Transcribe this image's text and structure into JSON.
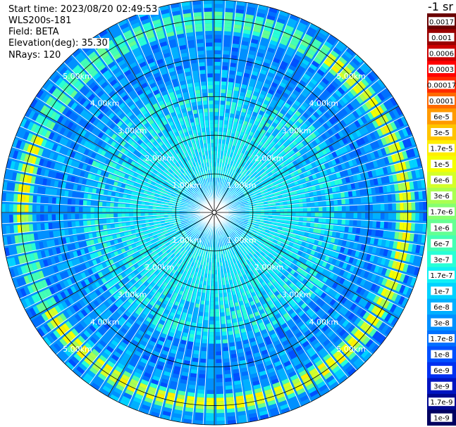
{
  "info": {
    "start_time": "Start time: 2023/08/20 02:49:53",
    "instrument": "WLS200s-181",
    "field": "Field: BETA",
    "elevation": "Elevation(deg): 35.30",
    "nrays": "NRays: 120"
  },
  "chart_data": {
    "type": "polar-ppi",
    "field": "BETA",
    "rays": 120,
    "range_rings_km": [
      1.0,
      2.0,
      3.0,
      4.0,
      5.0
    ],
    "ring_labels": [
      "1.00km",
      "2.00km",
      "3.00km",
      "4.00km",
      "5.00km"
    ],
    "max_range_km": 5.5,
    "spoke_angles_deg": [
      0,
      30,
      60,
      90,
      120,
      150,
      180,
      210,
      240,
      270,
      300,
      330
    ],
    "bright_ring": {
      "range_km": 4.95,
      "azimuth_from_deg": -55,
      "azimuth_to_deg": 150,
      "extra_arc": [
        175,
        205
      ]
    },
    "colorbar": {
      "unit_label": "-1 sr",
      "entries": [
        {
          "label": "0.0017",
          "color": "#6a0000"
        },
        {
          "label": "0.001",
          "color": "#9a0000"
        },
        {
          "label": "0.0006",
          "color": "#cc0000"
        },
        {
          "label": "0.0003",
          "color": "#ff0000"
        },
        {
          "label": "0.00017",
          "color": "#ff2a00"
        },
        {
          "label": "0.0001",
          "color": "#ff6a00"
        },
        {
          "label": "6e-5",
          "color": "#ff9a00"
        },
        {
          "label": "3e-5",
          "color": "#ffc400"
        },
        {
          "label": "1.7e-5",
          "color": "#ffee00"
        },
        {
          "label": "1e-5",
          "color": "#f4ff00"
        },
        {
          "label": "6e-6",
          "color": "#d4ff28"
        },
        {
          "label": "3e-6",
          "color": "#aaff50"
        },
        {
          "label": "1.7e-6",
          "color": "#86ff70"
        },
        {
          "label": "1e-6",
          "color": "#64ff92"
        },
        {
          "label": "6e-7",
          "color": "#44ffb4"
        },
        {
          "label": "3e-7",
          "color": "#28ffd6"
        },
        {
          "label": "1.7e-7",
          "color": "#10f0f4"
        },
        {
          "label": "1e-7",
          "color": "#00d2ff"
        },
        {
          "label": "6e-8",
          "color": "#00b0ff"
        },
        {
          "label": "3e-8",
          "color": "#0090ff"
        },
        {
          "label": "1.7e-8",
          "color": "#0070ff"
        },
        {
          "label": "1e-8",
          "color": "#0050ff"
        },
        {
          "label": "6e-9",
          "color": "#0030f0"
        },
        {
          "label": "3e-9",
          "color": "#0014c0"
        },
        {
          "label": "1.7e-9",
          "color": "#000890"
        },
        {
          "label": "1e-9",
          "color": "#000060"
        }
      ]
    }
  }
}
